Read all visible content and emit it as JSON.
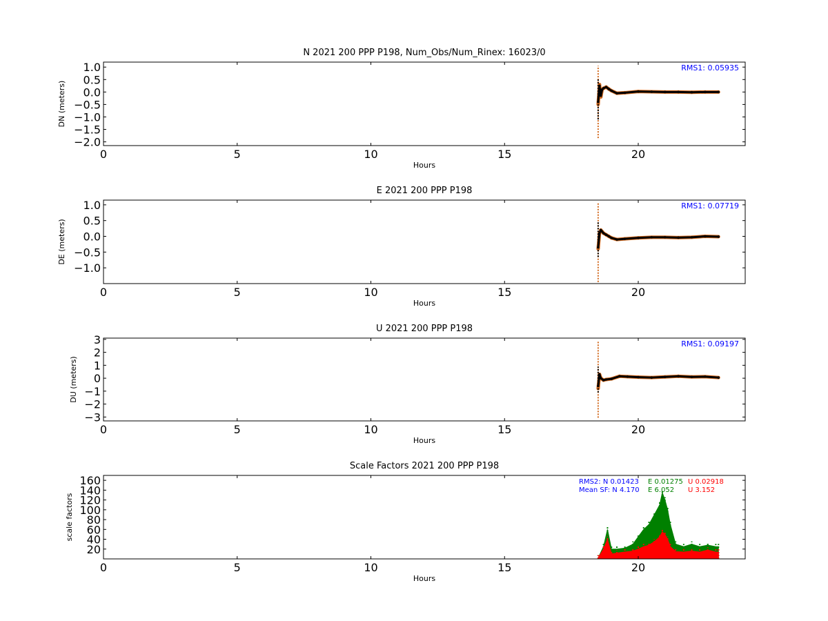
{
  "chart_data": [
    {
      "type": "scatter",
      "title": "N 2021 200 PPP  P198, Num_Obs/Num_Rinex: 16023/0",
      "xlabel": "Hours",
      "ylabel": "DN (meters)",
      "xlim": [
        0,
        24
      ],
      "ylim": [
        -2.15,
        1.2
      ],
      "xticks": [
        0,
        5,
        10,
        15,
        20
      ],
      "yticks": [
        -2.0,
        -1.5,
        -1.0,
        -0.5,
        0.0,
        0.5,
        1.0
      ],
      "ytick_labels": [
        "−2.0",
        "−1.5",
        "−1.0",
        "−0.5",
        "0.0",
        "0.5",
        "1.0"
      ],
      "annotations": [
        "RMS1:  0.05935"
      ],
      "series": [
        {
          "color": "#d2691e",
          "x": [
            18.5,
            18.55,
            18.6,
            18.65,
            18.7,
            18.8,
            18.9,
            19.0,
            19.2,
            19.5,
            20.0,
            20.5,
            21.0,
            21.5,
            22.0,
            22.5,
            23.0
          ],
          "y": [
            -0.5,
            0.3,
            -0.2,
            0.1,
            0.15,
            0.2,
            0.12,
            0.05,
            -0.05,
            -0.03,
            0.02,
            0.01,
            0.0,
            0.0,
            -0.01,
            0.0,
            0.0
          ],
          "spike": {
            "x": 18.5,
            "ymin": -1.85,
            "ymax": 1.05
          }
        },
        {
          "color": "#000000",
          "x": [
            18.5,
            18.55,
            18.6,
            18.65,
            18.7,
            18.8,
            18.9,
            19.0,
            19.2,
            19.5,
            20.0,
            20.5,
            21.0,
            21.5,
            22.0,
            22.5,
            23.0
          ],
          "y": [
            -0.4,
            0.25,
            -0.15,
            0.1,
            0.15,
            0.2,
            0.12,
            0.05,
            -0.05,
            -0.03,
            0.02,
            0.01,
            0.0,
            0.0,
            -0.01,
            0.0,
            0.0
          ],
          "spike": {
            "x": 18.5,
            "ymin": -1.1,
            "ymax": 0.5
          }
        }
      ]
    },
    {
      "type": "scatter",
      "title": "E 2021 200 PPP  P198",
      "xlabel": "Hours",
      "ylabel": "DE (meters)",
      "xlim": [
        0,
        24
      ],
      "ylim": [
        -1.5,
        1.15
      ],
      "xticks": [
        0,
        5,
        10,
        15,
        20
      ],
      "yticks": [
        -1.0,
        -0.5,
        0.0,
        0.5,
        1.0
      ],
      "ytick_labels": [
        "−1.0",
        "−0.5",
        "0.0",
        "0.5",
        "1.0"
      ],
      "annotations": [
        "RMS1:  0.07719"
      ],
      "series": [
        {
          "color": "#d2691e",
          "x": [
            18.5,
            18.55,
            18.6,
            18.65,
            18.7,
            18.8,
            18.9,
            19.0,
            19.2,
            19.5,
            20.0,
            20.5,
            21.0,
            21.5,
            22.0,
            22.5,
            23.0
          ],
          "y": [
            -0.4,
            0.1,
            0.2,
            0.15,
            0.1,
            0.05,
            0.0,
            -0.05,
            -0.1,
            -0.08,
            -0.05,
            -0.03,
            -0.03,
            -0.04,
            -0.03,
            0.0,
            -0.01
          ],
          "spike": {
            "x": 18.5,
            "ymin": -1.45,
            "ymax": 1.05
          }
        },
        {
          "color": "#000000",
          "x": [
            18.5,
            18.55,
            18.6,
            18.65,
            18.7,
            18.8,
            18.9,
            19.0,
            19.2,
            19.5,
            20.0,
            20.5,
            21.0,
            21.5,
            22.0,
            22.5,
            23.0
          ],
          "y": [
            -0.35,
            0.1,
            0.2,
            0.15,
            0.1,
            0.05,
            0.0,
            -0.05,
            -0.1,
            -0.08,
            -0.05,
            -0.03,
            -0.03,
            -0.04,
            -0.03,
            0.0,
            -0.01
          ],
          "spike": {
            "x": 18.5,
            "ymin": -0.65,
            "ymax": 0.45
          }
        }
      ]
    },
    {
      "type": "scatter",
      "title": "U 2021 200 PPP  P198",
      "xlabel": "Hours",
      "ylabel": "DU (meters)",
      "xlim": [
        0,
        24
      ],
      "ylim": [
        -3.3,
        3.1
      ],
      "xticks": [
        0,
        5,
        10,
        15,
        20
      ],
      "yticks": [
        -3,
        -2,
        -1,
        0,
        1,
        2,
        3
      ],
      "ytick_labels": [
        "−3",
        "−2",
        "−1",
        "0",
        "1",
        "2",
        "3"
      ],
      "annotations": [
        "RMS1:  0.09197"
      ],
      "series": [
        {
          "color": "#d2691e",
          "x": [
            18.5,
            18.55,
            18.6,
            18.7,
            18.8,
            19.0,
            19.3,
            19.6,
            20.0,
            20.5,
            21.0,
            21.5,
            22.0,
            22.5,
            23.0
          ],
          "y": [
            -0.8,
            0.3,
            0.0,
            -0.15,
            -0.1,
            -0.05,
            0.15,
            0.12,
            0.08,
            0.05,
            0.1,
            0.15,
            0.1,
            0.12,
            0.05
          ],
          "spike": {
            "x": 18.5,
            "ymin": -3.05,
            "ymax": 2.9
          }
        },
        {
          "color": "#000000",
          "x": [
            18.5,
            18.55,
            18.6,
            18.7,
            18.8,
            19.0,
            19.3,
            19.6,
            20.0,
            20.5,
            21.0,
            21.5,
            22.0,
            22.5,
            23.0
          ],
          "y": [
            -0.6,
            0.3,
            0.0,
            -0.15,
            -0.1,
            -0.05,
            0.15,
            0.12,
            0.08,
            0.05,
            0.1,
            0.15,
            0.1,
            0.12,
            0.05
          ],
          "spike": {
            "x": 18.5,
            "ymin": -1.1,
            "ymax": 0.9
          }
        }
      ]
    },
    {
      "type": "bar",
      "title": "Scale Factors 2021 200 PPP  P198",
      "xlabel": "Hours",
      "ylabel": "scale factors",
      "xlim": [
        0,
        24
      ],
      "ylim": [
        0,
        170
      ],
      "xticks": [
        0,
        5,
        10,
        15,
        20
      ],
      "yticks": [
        20,
        40,
        60,
        80,
        100,
        120,
        140,
        160
      ],
      "annotations": {
        "rms2_label": "RMS2: N  0.01423",
        "rms2_e": "E  0.01275",
        "rms2_u": "U  0.02918",
        "mean_label": "Mean SF: N   4.170",
        "mean_e": "E   6.052",
        "mean_u": "U   3.152"
      },
      "series": [
        {
          "color": "#008000",
          "x": [
            18.5,
            18.7,
            18.85,
            19.0,
            19.2,
            19.5,
            19.8,
            20.0,
            20.2,
            20.4,
            20.6,
            20.8,
            20.9,
            21.0,
            21.1,
            21.2,
            21.4,
            21.7,
            22.0,
            22.3,
            22.6,
            22.9,
            23.0
          ],
          "y": [
            2,
            25,
            60,
            20,
            20,
            22,
            30,
            45,
            60,
            70,
            90,
            110,
            135,
            120,
            100,
            70,
            30,
            25,
            30,
            25,
            28,
            25,
            25
          ]
        },
        {
          "color": "#ff0000",
          "x": [
            18.5,
            18.7,
            18.85,
            19.0,
            19.2,
            19.5,
            19.8,
            20.0,
            20.2,
            20.4,
            20.6,
            20.8,
            20.9,
            21.0,
            21.1,
            21.2,
            21.4,
            21.7,
            22.0,
            22.3,
            22.6,
            22.9,
            23.0
          ],
          "y": [
            2,
            20,
            40,
            10,
            12,
            14,
            16,
            20,
            25,
            28,
            35,
            45,
            55,
            50,
            40,
            25,
            15,
            14,
            16,
            14,
            18,
            14,
            14
          ]
        }
      ]
    }
  ],
  "colors": {
    "annotation_blue": "#0000ff",
    "e_green": "#008000",
    "u_red": "#ff0000"
  }
}
